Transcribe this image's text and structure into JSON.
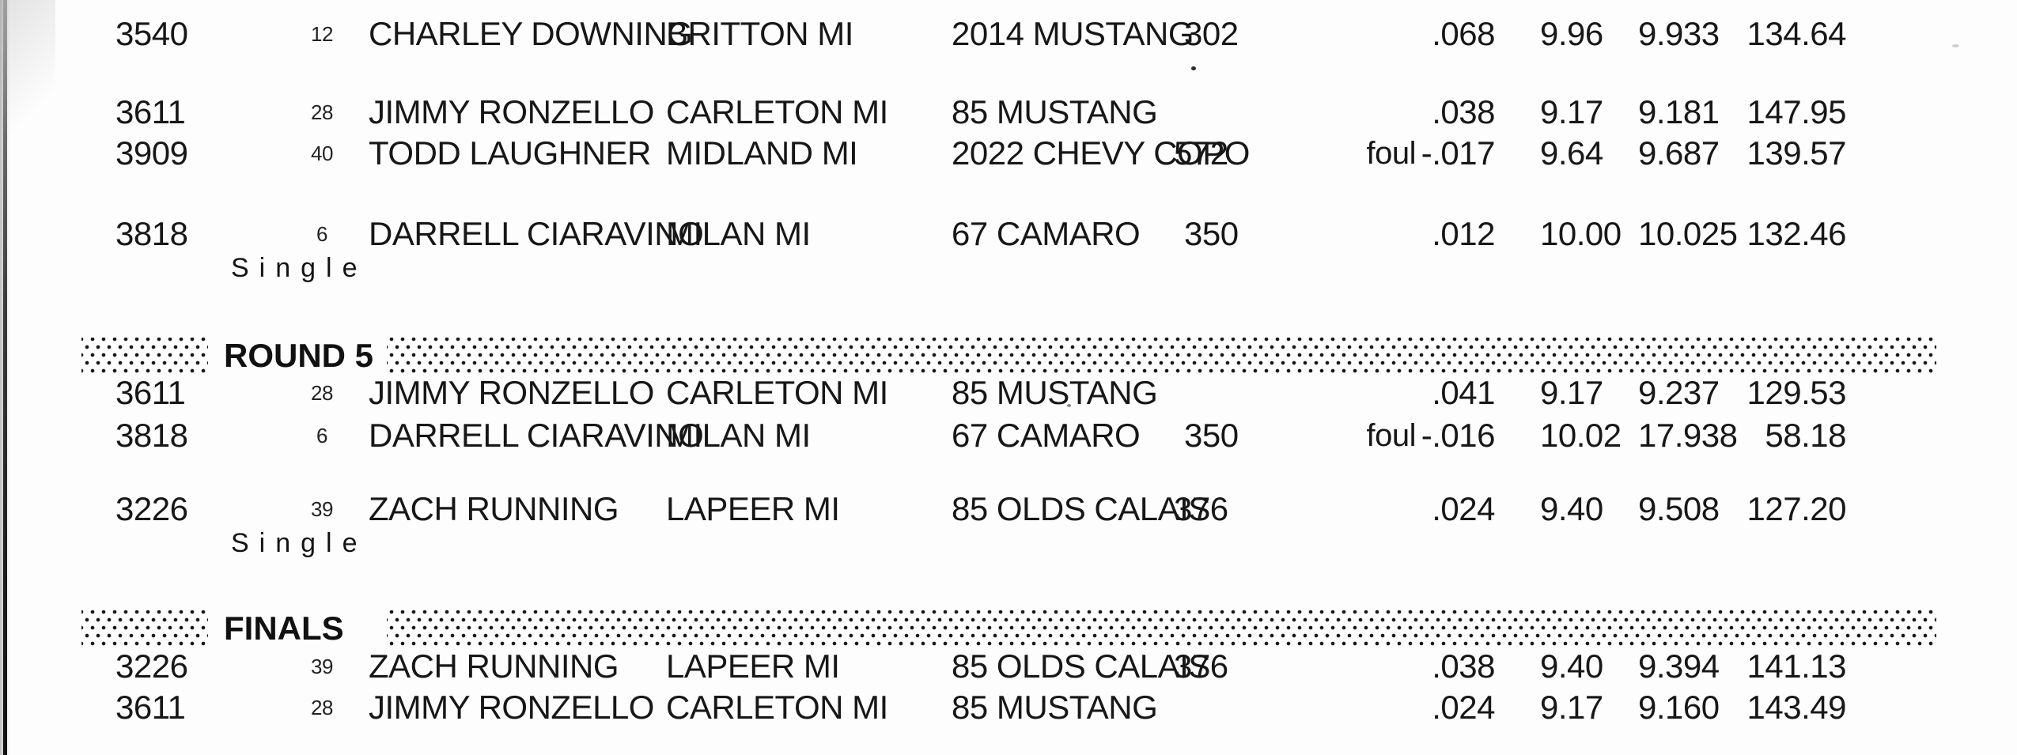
{
  "labels": {
    "single": "Single",
    "foul": "foul"
  },
  "sections": [
    {
      "title": "",
      "rows": [
        {
          "car_number": "3540",
          "lane": "12",
          "driver": "CHARLEY DOWNING",
          "city": "BRITTON MI",
          "car": "2014 MUSTANG",
          "engine": "302",
          "foul": false,
          "reaction": ".068",
          "dial": "9.96",
          "et": "9.933",
          "mph": "134.64",
          "single": false
        },
        {
          "car_number": "3611",
          "lane": "28",
          "driver": "JIMMY RONZELLO",
          "city": "CARLETON MI",
          "car": "85 MUSTANG",
          "engine": "",
          "foul": false,
          "reaction": ".038",
          "dial": "9.17",
          "et": "9.181",
          "mph": "147.95",
          "single": false
        },
        {
          "car_number": "3909",
          "lane": "40",
          "driver": "TODD LAUGHNER",
          "city": "MIDLAND MI",
          "car": "2022 CHEVY COPO",
          "engine": "572",
          "foul": true,
          "reaction": "-.017",
          "dial": "9.64",
          "et": "9.687",
          "mph": "139.57",
          "single": false
        },
        {
          "car_number": "3818",
          "lane": "6",
          "driver": "DARRELL CIARAVINO",
          "city": "MILAN MI",
          "car": "67 CAMARO",
          "engine": "350",
          "foul": false,
          "reaction": ".012",
          "dial": "10.00",
          "et": "10.025",
          "mph": "132.46",
          "single": true
        }
      ]
    },
    {
      "title": "ROUND 5",
      "rows": [
        {
          "car_number": "3611",
          "lane": "28",
          "driver": "JIMMY RONZELLO",
          "city": "CARLETON MI",
          "car": "85 MUSTANG",
          "engine": "",
          "foul": false,
          "reaction": ".041",
          "dial": "9.17",
          "et": "9.237",
          "mph": "129.53",
          "single": false
        },
        {
          "car_number": "3818",
          "lane": "6",
          "driver": "DARRELL CIARAVINO",
          "city": "MILAN MI",
          "car": "67 CAMARO",
          "engine": "350",
          "foul": true,
          "reaction": "-.016",
          "dial": "10.02",
          "et": "17.938",
          "mph": "58.18",
          "single": false
        },
        {
          "car_number": "3226",
          "lane": "39",
          "driver": "ZACH RUNNING",
          "city": "LAPEER MI",
          "car": "85 OLDS CALAIS",
          "engine": "376",
          "foul": false,
          "reaction": ".024",
          "dial": "9.40",
          "et": "9.508",
          "mph": "127.20",
          "single": true
        }
      ]
    },
    {
      "title": "FINALS",
      "rows": [
        {
          "car_number": "3226",
          "lane": "39",
          "driver": "ZACH RUNNING",
          "city": "LAPEER MI",
          "car": "85 OLDS CALAIS",
          "engine": "376",
          "foul": false,
          "reaction": ".038",
          "dial": "9.40",
          "et": "9.394",
          "mph": "141.13",
          "single": false
        },
        {
          "car_number": "3611",
          "lane": "28",
          "driver": "JIMMY RONZELLO",
          "city": "CARLETON MI",
          "car": "85 MUSTANG",
          "engine": "",
          "foul": false,
          "reaction": ".024",
          "dial": "9.17",
          "et": "9.160",
          "mph": "143.49",
          "single": false
        }
      ]
    }
  ]
}
